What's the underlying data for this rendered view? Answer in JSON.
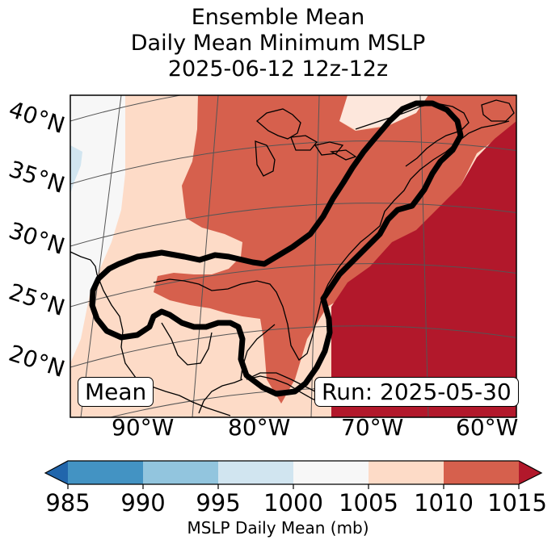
{
  "title": {
    "line1": "Ensemble Mean",
    "line2": "Daily Mean Minimum MSLP",
    "line3": "2025-06-12 12z-12z"
  },
  "map": {
    "lat_labels": [
      "40°N",
      "35°N",
      "30°N",
      "25°N",
      "20°N"
    ],
    "lon_labels": [
      "90°W",
      "80°W",
      "70°W",
      "60°W"
    ],
    "panel_label": "Mean",
    "run_label": "Run: 2025-05-30",
    "fill_colors": {
      "lt_985": "#2166ac",
      "985_990": "#4393c3",
      "990_995": "#92c5de",
      "995_1000": "#d1e5f0",
      "1000_1005": "#f7f7f7",
      "1005_1010": "#fddbc7",
      "1010_1015": "#d6604d",
      "gt_1015": "#b2182b"
    }
  },
  "colorbar": {
    "ticks": [
      "985",
      "990",
      "995",
      "1000",
      "1005",
      "1010",
      "1015"
    ],
    "label": "MSLP Daily Mean (mb)"
  }
}
